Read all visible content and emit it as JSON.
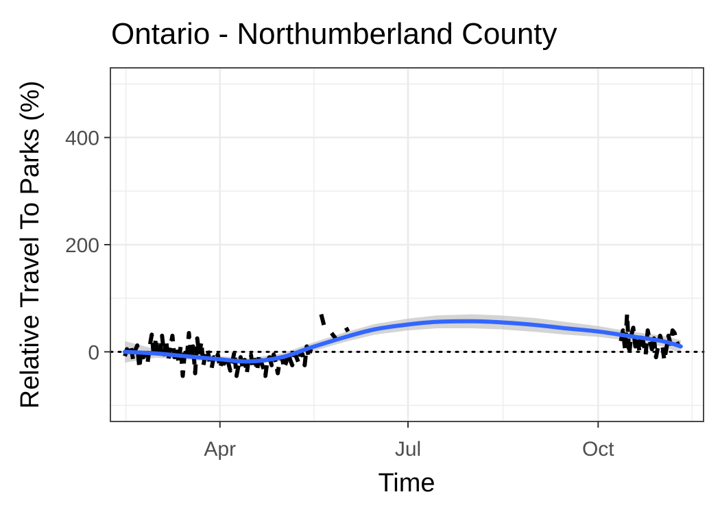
{
  "chart_data": {
    "type": "line",
    "title": "Ontario - Northumberland County",
    "xlabel": "Time",
    "ylabel": "Relative Travel To Parks (%)",
    "ylim": [
      -130,
      530
    ],
    "xlim": [
      "2020-02-08",
      "2020-11-21"
    ],
    "x_ticks": [
      {
        "date": "2020-04-01",
        "label": "Apr"
      },
      {
        "date": "2020-07-01",
        "label": "Jul"
      },
      {
        "date": "2020-10-01",
        "label": "Oct"
      }
    ],
    "y_ticks": [
      0,
      200,
      400
    ],
    "grid": true,
    "reference_line": {
      "y": 0,
      "style": "dotted"
    },
    "colors": {
      "raw_series": "#000000",
      "smooth_line": "#3366ff",
      "confidence_band": "#bdbdbd",
      "panel_border": "#333333",
      "grid": "#ebebeb"
    },
    "series": [
      {
        "role": "observed",
        "style": "dashed",
        "points": [
          [
            "2020-02-15",
            -8
          ],
          [
            "2020-02-16",
            5
          ],
          [
            "2020-02-17",
            -2
          ],
          [
            "2020-02-18",
            8
          ],
          [
            "2020-02-19",
            -15
          ],
          [
            "2020-02-20",
            3
          ],
          [
            "2020-02-21",
            12
          ],
          [
            "2020-02-22",
            -30
          ],
          [
            "2020-02-23",
            5
          ],
          [
            "2020-02-24",
            -10
          ],
          [
            "2020-02-25",
            -5
          ],
          [
            "2020-02-26",
            -20
          ],
          [
            "2020-02-27",
            10
          ],
          [
            "2020-02-28",
            32
          ],
          [
            "2020-02-29",
            -8
          ],
          [
            "2020-03-01",
            25
          ],
          [
            "2020-03-02",
            0
          ],
          [
            "2020-03-03",
            -10
          ],
          [
            "2020-03-04",
            30
          ],
          [
            "2020-03-05",
            -5
          ],
          [
            "2020-03-06",
            20
          ],
          [
            "2020-03-07",
            -15
          ],
          [
            "2020-03-08",
            8
          ],
          [
            "2020-03-09",
            30
          ],
          [
            "2020-03-10",
            -10
          ],
          [
            "2020-03-11",
            5
          ],
          [
            "2020-03-12",
            -20
          ],
          [
            "2020-03-13",
            10
          ],
          [
            "2020-03-14",
            -45
          ],
          [
            "2020-03-15",
            0
          ],
          [
            "2020-03-16",
            -10
          ],
          [
            "2020-03-17",
            35
          ],
          [
            "2020-03-18",
            -15
          ],
          [
            "2020-03-19",
            10
          ],
          [
            "2020-03-20",
            -40
          ],
          [
            "2020-03-21",
            25
          ],
          [
            "2020-03-22",
            -5
          ],
          [
            "2020-03-23",
            18
          ],
          [
            "2020-03-24",
            -25
          ],
          [
            "2020-03-25",
            -5
          ],
          [
            "2020-03-26",
            5
          ],
          [
            "2020-03-27",
            -20
          ],
          [
            "2020-03-28",
            -30
          ],
          [
            "2020-03-29",
            -10
          ],
          [
            "2020-03-30",
            -15
          ],
          [
            "2020-03-31",
            -5
          ],
          [
            "2020-04-01",
            -30
          ],
          [
            "2020-04-02",
            -18
          ],
          [
            "2020-04-03",
            -22
          ],
          [
            "2020-04-04",
            -10
          ],
          [
            "2020-04-05",
            -20
          ],
          [
            "2020-04-06",
            -35
          ],
          [
            "2020-04-07",
            -20
          ],
          [
            "2020-04-08",
            0
          ],
          [
            "2020-04-09",
            -45
          ],
          [
            "2020-04-10",
            -25
          ],
          [
            "2020-04-11",
            -10
          ],
          [
            "2020-04-12",
            -30
          ],
          [
            "2020-04-13",
            -15
          ],
          [
            "2020-04-14",
            -40
          ],
          [
            "2020-04-15",
            -12
          ],
          [
            "2020-04-16",
            -5
          ],
          [
            "2020-04-17",
            -30
          ],
          [
            "2020-04-18",
            -15
          ],
          [
            "2020-04-19",
            -35
          ],
          [
            "2020-04-20",
            -5
          ],
          [
            "2020-04-21",
            -20
          ],
          [
            "2020-04-22",
            -30
          ],
          [
            "2020-04-23",
            -45
          ],
          [
            "2020-04-24",
            -15
          ],
          [
            "2020-04-25",
            -10
          ],
          [
            "2020-04-26",
            -25
          ],
          [
            "2020-04-27",
            -5
          ],
          [
            "2020-04-28",
            -20
          ],
          [
            "2020-04-29",
            -40
          ],
          [
            "2020-04-30",
            -15
          ],
          [
            "2020-05-01",
            -10
          ],
          [
            "2020-05-02",
            -30
          ],
          [
            "2020-05-03",
            -20
          ],
          [
            "2020-05-04",
            0
          ],
          [
            "2020-05-05",
            -15
          ],
          [
            "2020-05-06",
            -25
          ],
          [
            "2020-05-07",
            -5
          ],
          [
            "2020-05-08",
            -10
          ],
          [
            "2020-05-09",
            -20
          ],
          [
            "2020-05-10",
            0
          ],
          [
            "2020-05-11",
            -5
          ],
          [
            "2020-05-12",
            -25
          ],
          [
            "2020-05-13",
            10
          ],
          [
            "2020-05-14",
            -10
          ],
          [
            "2020-05-15",
            5
          ],
          [
            "2020-05-20",
            70
          ],
          [
            "2020-05-21",
            55
          ],
          [
            "2020-05-22",
            40
          ],
          [
            "2020-05-25",
            35
          ],
          [
            "2020-05-26",
            30
          ],
          [
            "2020-05-27",
            25
          ],
          [
            "2020-06-01",
            45
          ],
          [
            "2020-06-02",
            38
          ],
          [
            "2020-10-12",
            20
          ],
          [
            "2020-10-13",
            40
          ],
          [
            "2020-10-14",
            5
          ],
          [
            "2020-10-15",
            70
          ],
          [
            "2020-10-16",
            -5
          ],
          [
            "2020-10-17",
            30
          ],
          [
            "2020-10-18",
            45
          ],
          [
            "2020-10-19",
            10
          ],
          [
            "2020-10-20",
            25
          ],
          [
            "2020-10-21",
            0
          ],
          [
            "2020-10-22",
            35
          ],
          [
            "2020-10-23",
            15
          ],
          [
            "2020-10-24",
            -5
          ],
          [
            "2020-10-25",
            40
          ],
          [
            "2020-10-26",
            20
          ],
          [
            "2020-10-27",
            5
          ],
          [
            "2020-10-28",
            25
          ],
          [
            "2020-10-29",
            -10
          ],
          [
            "2020-10-30",
            10
          ],
          [
            "2020-10-31",
            30
          ],
          [
            "2020-11-01",
            15
          ],
          [
            "2020-11-02",
            -15
          ],
          [
            "2020-11-03",
            5
          ],
          [
            "2020-11-04",
            30
          ],
          [
            "2020-11-05",
            15
          ],
          [
            "2020-11-06",
            40
          ],
          [
            "2020-11-07",
            35
          ],
          [
            "2020-11-08",
            20
          ],
          [
            "2020-11-09",
            10
          ]
        ]
      },
      {
        "role": "smoothed",
        "style": "solid",
        "points": [
          [
            "2020-02-15",
            0,
            20
          ],
          [
            "2020-03-01",
            -3,
            8
          ],
          [
            "2020-03-15",
            -8,
            6
          ],
          [
            "2020-04-01",
            -14,
            6
          ],
          [
            "2020-04-15",
            -18,
            6
          ],
          [
            "2020-05-01",
            -10,
            7
          ],
          [
            "2020-05-15",
            8,
            8
          ],
          [
            "2020-06-01",
            28,
            9
          ],
          [
            "2020-06-15",
            42,
            10
          ],
          [
            "2020-07-01",
            51,
            11
          ],
          [
            "2020-07-15",
            56,
            12
          ],
          [
            "2020-08-01",
            57,
            13
          ],
          [
            "2020-08-15",
            55,
            13
          ],
          [
            "2020-09-01",
            50,
            13
          ],
          [
            "2020-09-15",
            44,
            12
          ],
          [
            "2020-10-01",
            38,
            10
          ],
          [
            "2020-10-15",
            30,
            9
          ],
          [
            "2020-11-01",
            20,
            10
          ],
          [
            "2020-11-10",
            10,
            12
          ]
        ]
      }
    ]
  }
}
